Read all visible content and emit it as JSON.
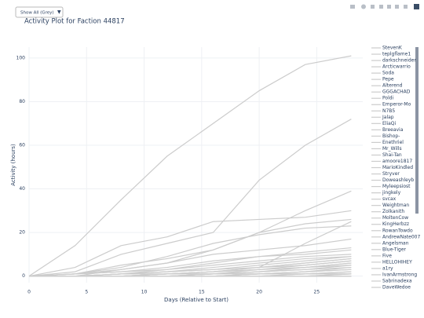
{
  "dropdown": {
    "label": "Show All (Grey)",
    "arrow": "▼"
  },
  "chart_data": {
    "type": "line",
    "title": "Activity Plot for Faction 44817",
    "x_label": "Days (Relative to Start)",
    "y_label": "Activity (hours)",
    "x": [
      0,
      4,
      8,
      12,
      16,
      20,
      24,
      28
    ],
    "xlim": [
      0,
      29
    ],
    "xticks": [
      0,
      5,
      10,
      15,
      20,
      25
    ],
    "ylim": [
      -3,
      105
    ],
    "yticks": [
      0,
      20,
      40,
      60,
      80,
      100
    ],
    "grid": true,
    "color": "#cccccc",
    "legend": "right",
    "series": [
      {
        "name": "StevenK",
        "values": [
          0,
          14,
          35,
          55,
          70,
          85,
          97,
          101
        ]
      },
      {
        "name": "teplgflame1",
        "values": [
          0,
          2,
          10,
          15,
          20,
          44,
          60,
          72
        ]
      },
      {
        "name": "darkschneider",
        "values": [
          0,
          1,
          5,
          8,
          12,
          20,
          30,
          39
        ]
      },
      {
        "name": "Arcticwarrio",
        "values": [
          0,
          4,
          14,
          18,
          25,
          26,
          27,
          30
        ]
      },
      {
        "name": "Soda",
        "values": [
          0,
          1,
          3,
          6,
          12,
          20,
          24,
          26
        ]
      },
      {
        "name": "Pepe",
        "values": [
          null,
          null,
          null,
          null,
          null,
          4,
          15,
          25
        ]
      },
      {
        "name": "Alterend",
        "values": [
          0,
          1,
          4,
          9,
          15,
          19,
          22,
          23
        ]
      },
      {
        "name": "GGGACHAD",
        "values": [
          0,
          0,
          3,
          6,
          10,
          12,
          14,
          17
        ]
      },
      {
        "name": "Poldi",
        "values": [
          0,
          1,
          2,
          4,
          7,
          9,
          11,
          13
        ]
      },
      {
        "name": "Emperor-Mo",
        "values": [
          0,
          0,
          1,
          3,
          6,
          9,
          10,
          12
        ]
      },
      {
        "name": "N7B5",
        "values": [
          0,
          1,
          2,
          3,
          5,
          7,
          9,
          10
        ]
      },
      {
        "name": "Jalap",
        "values": [
          0,
          0,
          1,
          2,
          4,
          6,
          8,
          9
        ]
      },
      {
        "name": "EliaQi",
        "values": [
          0,
          0,
          1,
          2,
          3,
          5,
          7,
          9
        ]
      },
      {
        "name": "Breeavia",
        "values": [
          0,
          0,
          1,
          2,
          3,
          4,
          6,
          8
        ]
      },
      {
        "name": "Bishop-",
        "values": [
          0,
          0,
          1,
          1,
          2,
          4,
          6,
          8
        ]
      },
      {
        "name": "Enethriel",
        "values": [
          0,
          0,
          0,
          1,
          2,
          4,
          5,
          7
        ]
      },
      {
        "name": "Mr_Wills",
        "values": [
          0,
          0,
          0,
          1,
          2,
          3,
          5,
          7
        ]
      },
      {
        "name": "Shai-Tan",
        "values": [
          0,
          0,
          0,
          1,
          2,
          3,
          4,
          6
        ]
      },
      {
        "name": "amoore1817",
        "values": [
          0,
          0,
          0,
          1,
          1,
          3,
          4,
          6
        ]
      },
      {
        "name": "MarioKindled",
        "values": [
          0,
          0,
          0,
          1,
          1,
          2,
          4,
          5
        ]
      },
      {
        "name": "Stryver",
        "values": [
          0,
          0,
          0,
          0,
          1,
          2,
          3,
          5
        ]
      },
      {
        "name": "Doweashleyb",
        "values": [
          0,
          0,
          0,
          0,
          1,
          2,
          3,
          4
        ]
      },
      {
        "name": "Myleepsiost",
        "values": [
          0,
          0,
          0,
          0,
          1,
          1,
          2,
          4
        ]
      },
      {
        "name": "jingkely",
        "values": [
          0,
          0,
          0,
          0,
          1,
          1,
          2,
          3
        ]
      },
      {
        "name": "svcax",
        "values": [
          0,
          0,
          0,
          0,
          0,
          1,
          2,
          3
        ]
      },
      {
        "name": "Weightman",
        "values": [
          0,
          0,
          0,
          0,
          0,
          1,
          1,
          2
        ]
      },
      {
        "name": "Zolkanith",
        "values": [
          0,
          0,
          0,
          0,
          0,
          1,
          1,
          2
        ]
      },
      {
        "name": "MoltenCow",
        "values": [
          0,
          0,
          0,
          0,
          0,
          0,
          1,
          1
        ]
      },
      {
        "name": "KingHerbzz",
        "values": [
          0,
          0,
          0,
          0,
          0,
          0,
          1,
          1
        ]
      },
      {
        "name": "RowanTowdo",
        "values": [
          0,
          0,
          0,
          0,
          0,
          0,
          0,
          1
        ]
      },
      {
        "name": "AndrewNate007",
        "values": [
          0,
          0,
          0,
          0,
          0,
          0,
          0,
          1
        ]
      },
      {
        "name": "Angelsman",
        "values": [
          0,
          0,
          0,
          0,
          0,
          0,
          0,
          0
        ]
      },
      {
        "name": "Blue-Tiger",
        "values": [
          0,
          0,
          0,
          0,
          0,
          0,
          0,
          0
        ]
      },
      {
        "name": "Five",
        "values": [
          0,
          0,
          0,
          0,
          0,
          0,
          0,
          0
        ]
      },
      {
        "name": "HELLOHIHEY",
        "values": [
          0,
          0,
          0,
          0,
          0,
          0,
          0,
          0
        ]
      },
      {
        "name": "a1ry",
        "values": [
          0,
          0,
          0,
          0,
          0,
          0,
          0,
          0
        ]
      },
      {
        "name": "IvanArmstrong",
        "values": [
          0,
          0,
          0,
          0,
          0,
          0,
          0,
          0
        ]
      },
      {
        "name": "Sabrinadexa",
        "values": [
          0,
          0,
          0,
          0,
          0,
          0,
          0,
          0
        ]
      },
      {
        "name": "DaveWedoe",
        "values": [
          0,
          0,
          0,
          0,
          0,
          0,
          0,
          0
        ]
      }
    ]
  }
}
